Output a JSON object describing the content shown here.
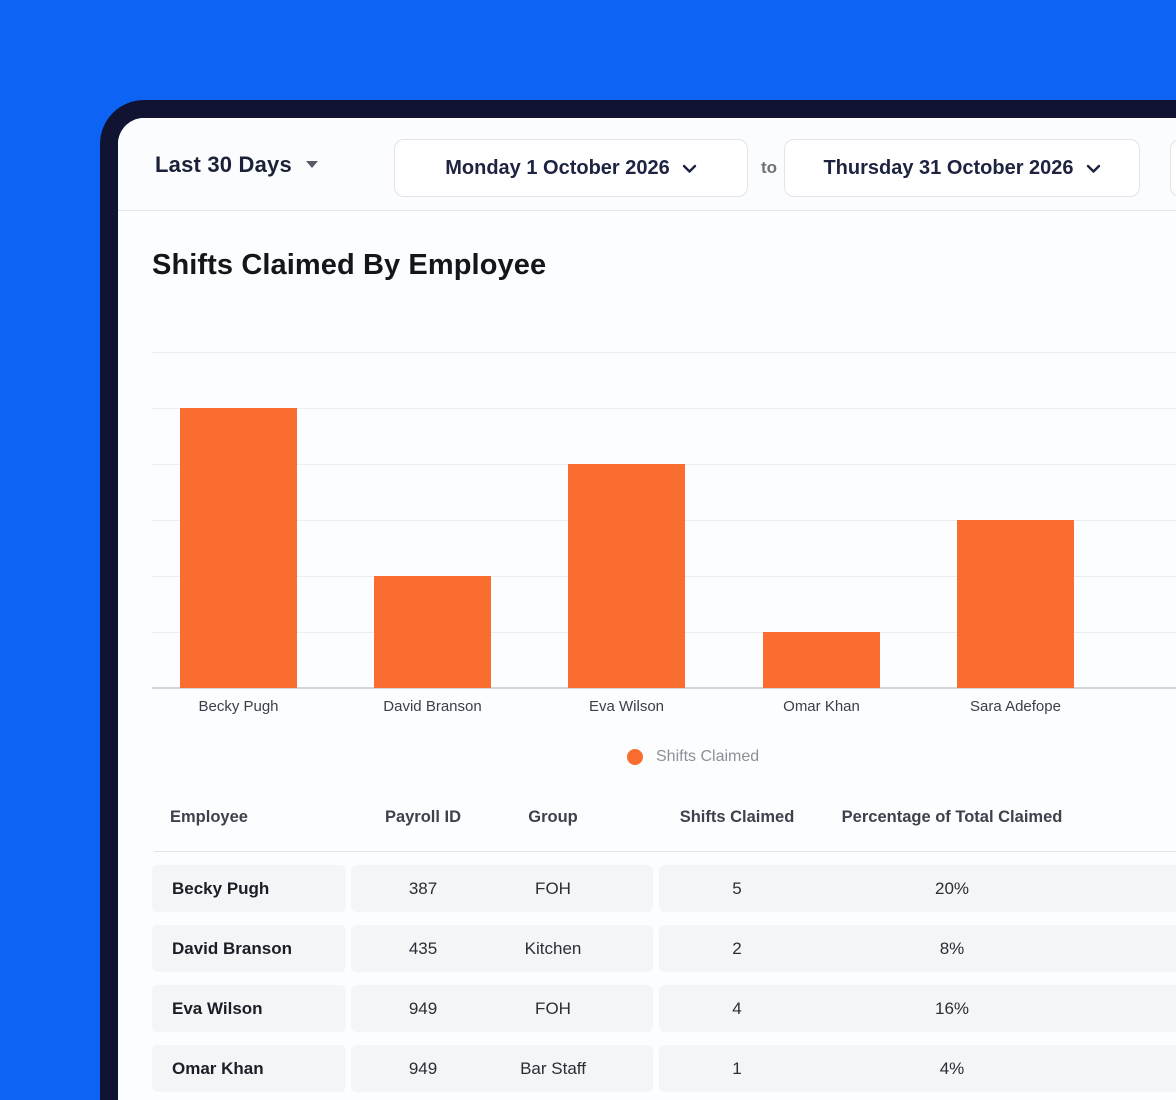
{
  "filter_bar": {
    "range_label": "Last 30 Days",
    "date_from": "Monday 1 October 2026",
    "to_label": "to",
    "date_to": "Thursday 31 October 2026"
  },
  "page": {
    "title": "Shifts Claimed By Employee"
  },
  "chart_data": {
    "type": "bar",
    "title": "Shifts Claimed By Employee",
    "categories": [
      "Becky Pugh",
      "David Branson",
      "Eva Wilson",
      "Omar Khan",
      "Sara Adefope"
    ],
    "values": [
      5,
      2,
      4,
      1,
      3
    ],
    "series_name": "Shifts Claimed",
    "xlabel": "",
    "ylabel": "",
    "ylim": [
      0,
      6
    ],
    "gridline_step": 1,
    "grid": "horizontal",
    "y_tick_labels_shown": false,
    "legend_position": "bottom",
    "bar_color": "#f96e30"
  },
  "table": {
    "columns": [
      "Employee",
      "Payroll ID",
      "Group",
      "Shifts Claimed",
      "Percentage of Total Claimed"
    ],
    "rows": [
      {
        "employee": "Becky Pugh",
        "payroll_id": "387",
        "group": "FOH",
        "shifts_claimed": "5",
        "percentage": "20%"
      },
      {
        "employee": "David Branson",
        "payroll_id": "435",
        "group": "Kitchen",
        "shifts_claimed": "2",
        "percentage": "8%"
      },
      {
        "employee": "Eva Wilson",
        "payroll_id": "949",
        "group": "FOH",
        "shifts_claimed": "4",
        "percentage": "16%"
      },
      {
        "employee": "Omar Khan",
        "payroll_id": "949",
        "group": "Bar Staff",
        "shifts_claimed": "1",
        "percentage": "4%"
      }
    ]
  },
  "colors": {
    "background_blue": "#0d63f4",
    "window_frame_navy": "#101331",
    "card_white": "#fcfdfe",
    "bar_orange": "#f96e30",
    "row_gray": "#f4f5f7",
    "gridline": "#eceded"
  }
}
